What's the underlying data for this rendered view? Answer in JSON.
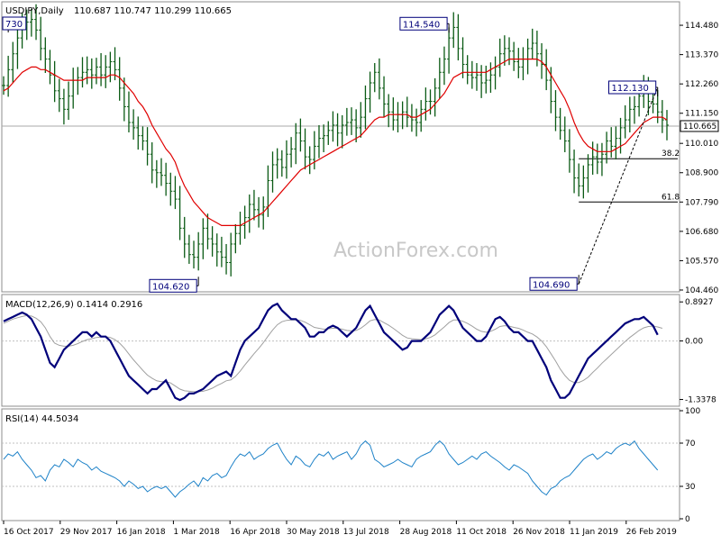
{
  "header": {
    "symbol": "USDJPY,Daily",
    "ohlc": "110.687 110.747 110.299 110.665"
  },
  "watermark": "ActionForex.com",
  "colors": {
    "candles": "#0a5a14",
    "ema": "#e00000",
    "macd": "#00007a",
    "signal": "#a0a0a0",
    "rsi": "#1e82c8",
    "grid": "#c0c0c0",
    "current": "#aaaaaa"
  },
  "chart_data": [
    {
      "type": "line",
      "panel": "price",
      "title": "USDJPY,Daily",
      "x_labels": [
        "16 Oct 2017",
        "29 Nov 2017",
        "16 Jan 2018",
        "1 Mar 2018",
        "16 Apr 2018",
        "30 May 2018",
        "13 Jul 2018",
        "28 Aug 2018",
        "11 Oct 2018",
        "26 Nov 2018",
        "11 Jan 2019",
        "26 Feb 2019"
      ],
      "y_ticks": [
        "114.480",
        "113.370",
        "112.260",
        "111.150",
        "110.010",
        "108.900",
        "107.790",
        "106.680",
        "105.570",
        "104.460"
      ],
      "ylim": [
        104.46,
        115.3
      ],
      "current_price": "110.665",
      "series": [
        {
          "values": [
            112.2,
            112.8,
            113.4,
            114.0,
            114.4,
            114.6,
            114.7,
            114.3,
            113.6,
            113.2,
            112.6,
            112.0,
            111.7,
            111.3,
            111.8,
            112.4,
            112.5,
            112.7,
            112.8,
            112.6,
            112.9,
            112.6,
            112.9,
            113.1,
            112.8,
            112.1,
            111.4,
            110.8,
            110.6,
            110.3,
            110.1,
            109.6,
            109.0,
            108.9,
            108.8,
            108.5,
            108.2,
            107.9,
            106.8,
            106.2,
            105.8,
            105.7,
            106.2,
            106.8,
            106.4,
            106.2,
            105.9,
            105.7,
            105.5,
            106.2,
            106.6,
            106.9,
            107.2,
            107.7,
            107.5,
            107.3,
            107.6,
            108.6,
            109.2,
            109.4,
            109.1,
            109.6,
            109.8,
            110.4,
            110.1,
            109.5,
            109.4,
            109.9,
            110.2,
            110.3,
            110.5,
            110.7,
            110.4,
            110.7,
            110.8,
            110.9,
            110.6,
            111.0,
            111.7,
            112.3,
            112.7,
            112.1,
            111.5,
            111.2,
            110.9,
            111.1,
            111.2,
            111.0,
            110.9,
            110.8,
            111.3,
            111.6,
            111.6,
            112.1,
            112.7,
            113.2,
            114.0,
            114.4,
            113.6,
            113.0,
            112.6,
            112.5,
            112.6,
            112.3,
            112.4,
            112.6,
            112.9,
            113.4,
            113.6,
            113.5,
            113.1,
            112.9,
            113.2,
            113.6,
            113.8,
            113.4,
            113.0,
            112.4,
            111.6,
            111.0,
            110.5,
            110.1,
            109.4,
            108.7,
            108.4,
            108.7,
            109.2,
            109.5,
            109.3,
            109.6,
            110.1,
            109.9,
            110.2,
            110.6,
            110.9,
            111.3,
            111.4,
            111.8,
            112.1,
            111.6,
            111.5,
            111.2,
            110.9,
            110.7
          ]
        },
        {
          "name": "",
          "values": [
            112.0,
            112.1,
            112.3,
            112.5,
            112.7,
            112.8,
            112.9,
            112.9,
            112.8,
            112.8,
            112.7,
            112.6,
            112.5,
            112.4,
            112.4,
            112.4,
            112.4,
            112.4,
            112.5,
            112.5,
            112.5,
            112.5,
            112.5,
            112.6,
            112.6,
            112.5,
            112.3,
            112.1,
            111.9,
            111.6,
            111.4,
            111.1,
            110.7,
            110.4,
            110.1,
            109.8,
            109.6,
            109.3,
            108.8,
            108.4,
            108.1,
            107.8,
            107.6,
            107.4,
            107.2,
            107.1,
            107.0,
            106.9,
            106.9,
            106.9,
            106.9,
            106.9,
            107.0,
            107.1,
            107.2,
            107.3,
            107.4,
            107.6,
            107.8,
            108.0,
            108.2,
            108.4,
            108.6,
            108.8,
            109.0,
            109.1,
            109.2,
            109.3,
            109.4,
            109.5,
            109.6,
            109.7,
            109.8,
            109.9,
            110.0,
            110.1,
            110.2,
            110.3,
            110.5,
            110.7,
            110.9,
            111.0,
            111.0,
            111.1,
            111.1,
            111.1,
            111.1,
            111.1,
            111.0,
            111.0,
            111.1,
            111.2,
            111.3,
            111.5,
            111.7,
            111.9,
            112.2,
            112.5,
            112.6,
            112.7,
            112.7,
            112.7,
            112.7,
            112.7,
            112.7,
            112.8,
            112.9,
            113.0,
            113.1,
            113.2,
            113.2,
            113.2,
            113.2,
            113.2,
            113.2,
            113.2,
            113.1,
            112.9,
            112.6,
            112.3,
            112.0,
            111.7,
            111.3,
            110.8,
            110.4,
            110.1,
            109.9,
            109.8,
            109.7,
            109.7,
            109.7,
            109.7,
            109.8,
            109.9,
            110.0,
            110.2,
            110.4,
            110.6,
            110.8,
            110.9,
            111.0,
            111.0,
            111.0,
            110.9
          ]
        }
      ],
      "annotations": [
        {
          "label": "730",
          "x_index": 1,
          "y": 114.55
        },
        {
          "label": "104.620",
          "x_index": 42,
          "y": 104.62
        },
        {
          "label": "114.540",
          "x_index": 96,
          "y": 114.54
        },
        {
          "label": "104.690",
          "x_index": 124,
          "y": 104.69
        },
        {
          "label": "112.130",
          "x_index": 141,
          "y": 112.13
        }
      ],
      "levels": [
        {
          "label": "38.2",
          "y": 109.43,
          "from_index": 124
        },
        {
          "label": "61.8",
          "y": 107.79,
          "from_index": 124
        }
      ],
      "trendline": {
        "from_index": 124,
        "from_y": 104.69,
        "to_index": 141,
        "to_y": 112.13
      }
    },
    {
      "type": "line",
      "panel": "macd",
      "title": "MACD(12,26,9) 0.1414 0.2916",
      "y_ticks": [
        "0.8927",
        "0.00",
        "-1.3378"
      ],
      "ylim": [
        -1.45,
        1.0
      ],
      "series": [
        {
          "values": [
            0.45,
            0.5,
            0.55,
            0.6,
            0.65,
            0.6,
            0.5,
            0.3,
            0.1,
            -0.2,
            -0.5,
            -0.6,
            -0.4,
            -0.2,
            -0.1,
            0.0,
            0.1,
            0.2,
            0.2,
            0.1,
            0.2,
            0.1,
            0.1,
            0.0,
            -0.2,
            -0.4,
            -0.6,
            -0.8,
            -0.9,
            -1.0,
            -1.1,
            -1.2,
            -1.1,
            -1.1,
            -1.0,
            -0.9,
            -1.1,
            -1.3,
            -1.35,
            -1.3,
            -1.2,
            -1.2,
            -1.15,
            -1.1,
            -1.0,
            -0.9,
            -0.8,
            -0.75,
            -0.7,
            -0.8,
            -0.5,
            -0.2,
            0.0,
            0.1,
            0.2,
            0.3,
            0.5,
            0.7,
            0.8,
            0.85,
            0.7,
            0.6,
            0.5,
            0.5,
            0.4,
            0.3,
            0.1,
            0.1,
            0.2,
            0.2,
            0.3,
            0.35,
            0.3,
            0.2,
            0.1,
            0.2,
            0.3,
            0.5,
            0.7,
            0.8,
            0.6,
            0.4,
            0.2,
            0.1,
            0.0,
            -0.1,
            -0.2,
            -0.15,
            0.0,
            0.0,
            0.0,
            0.1,
            0.2,
            0.4,
            0.6,
            0.7,
            0.8,
            0.7,
            0.5,
            0.3,
            0.2,
            0.1,
            0.0,
            0.0,
            0.1,
            0.3,
            0.5,
            0.55,
            0.45,
            0.3,
            0.2,
            0.2,
            0.1,
            0.0,
            0.0,
            -0.2,
            -0.4,
            -0.6,
            -0.9,
            -1.1,
            -1.3,
            -1.3,
            -1.2,
            -1.0,
            -0.8,
            -0.6,
            -0.4,
            -0.3,
            -0.2,
            -0.1,
            0.0,
            0.1,
            0.2,
            0.3,
            0.4,
            0.45,
            0.5,
            0.5,
            0.55,
            0.45,
            0.35,
            0.14
          ]
        },
        {
          "values": [
            0.4,
            0.45,
            0.5,
            0.53,
            0.56,
            0.58,
            0.57,
            0.52,
            0.44,
            0.3,
            0.1,
            -0.05,
            -0.1,
            -0.12,
            -0.12,
            -0.1,
            -0.06,
            -0.01,
            0.03,
            0.05,
            0.08,
            0.09,
            0.1,
            0.08,
            0.03,
            -0.05,
            -0.16,
            -0.3,
            -0.43,
            -0.55,
            -0.67,
            -0.78,
            -0.85,
            -0.91,
            -0.93,
            -0.93,
            -0.96,
            -1.03,
            -1.1,
            -1.14,
            -1.15,
            -1.16,
            -1.16,
            -1.15,
            -1.12,
            -1.08,
            -1.02,
            -0.97,
            -0.91,
            -0.89,
            -0.81,
            -0.69,
            -0.55,
            -0.42,
            -0.29,
            -0.17,
            -0.04,
            0.11,
            0.25,
            0.37,
            0.44,
            0.47,
            0.48,
            0.48,
            0.47,
            0.43,
            0.37,
            0.31,
            0.29,
            0.27,
            0.28,
            0.29,
            0.29,
            0.27,
            0.24,
            0.23,
            0.24,
            0.29,
            0.37,
            0.46,
            0.49,
            0.48,
            0.42,
            0.36,
            0.29,
            0.21,
            0.13,
            0.07,
            0.05,
            0.04,
            0.03,
            0.05,
            0.08,
            0.14,
            0.23,
            0.32,
            0.42,
            0.48,
            0.48,
            0.45,
            0.4,
            0.34,
            0.27,
            0.22,
            0.2,
            0.22,
            0.27,
            0.33,
            0.35,
            0.34,
            0.31,
            0.29,
            0.25,
            0.2,
            0.16,
            0.09,
            0.0,
            -0.13,
            -0.29,
            -0.46,
            -0.64,
            -0.79,
            -0.9,
            -0.95,
            -0.95,
            -0.9,
            -0.83,
            -0.72,
            -0.62,
            -0.51,
            -0.41,
            -0.31,
            -0.21,
            -0.11,
            -0.01,
            0.08,
            0.16,
            0.24,
            0.3,
            0.33,
            0.34,
            0.32,
            0.29
          ]
        }
      ]
    },
    {
      "type": "line",
      "panel": "rsi",
      "title": "RSI(14) 44.5034",
      "y_ticks": [
        "100",
        "70",
        "30",
        "0"
      ],
      "ylim": [
        0,
        100
      ],
      "levels": [
        70,
        30
      ],
      "series": [
        {
          "values": [
            55,
            60,
            58,
            62,
            55,
            50,
            45,
            38,
            40,
            35,
            45,
            50,
            48,
            55,
            52,
            48,
            55,
            52,
            50,
            45,
            48,
            44,
            42,
            40,
            38,
            35,
            30,
            35,
            32,
            28,
            30,
            25,
            28,
            30,
            28,
            30,
            25,
            20,
            25,
            28,
            32,
            35,
            30,
            38,
            35,
            40,
            42,
            38,
            40,
            48,
            55,
            60,
            58,
            62,
            55,
            58,
            60,
            65,
            68,
            70,
            62,
            55,
            50,
            58,
            55,
            50,
            48,
            55,
            60,
            58,
            62,
            55,
            58,
            60,
            62,
            55,
            60,
            68,
            72,
            68,
            55,
            52,
            48,
            50,
            52,
            55,
            52,
            50,
            48,
            55,
            58,
            60,
            62,
            68,
            72,
            68,
            60,
            55,
            50,
            52,
            55,
            58,
            55,
            60,
            62,
            58,
            55,
            52,
            48,
            45,
            50,
            48,
            45,
            42,
            35,
            30,
            25,
            22,
            28,
            30,
            35,
            38,
            40,
            45,
            50,
            55,
            58,
            60,
            55,
            58,
            62,
            60,
            65,
            68,
            70,
            68,
            72,
            65,
            60,
            55,
            50,
            45
          ]
        }
      ]
    }
  ]
}
